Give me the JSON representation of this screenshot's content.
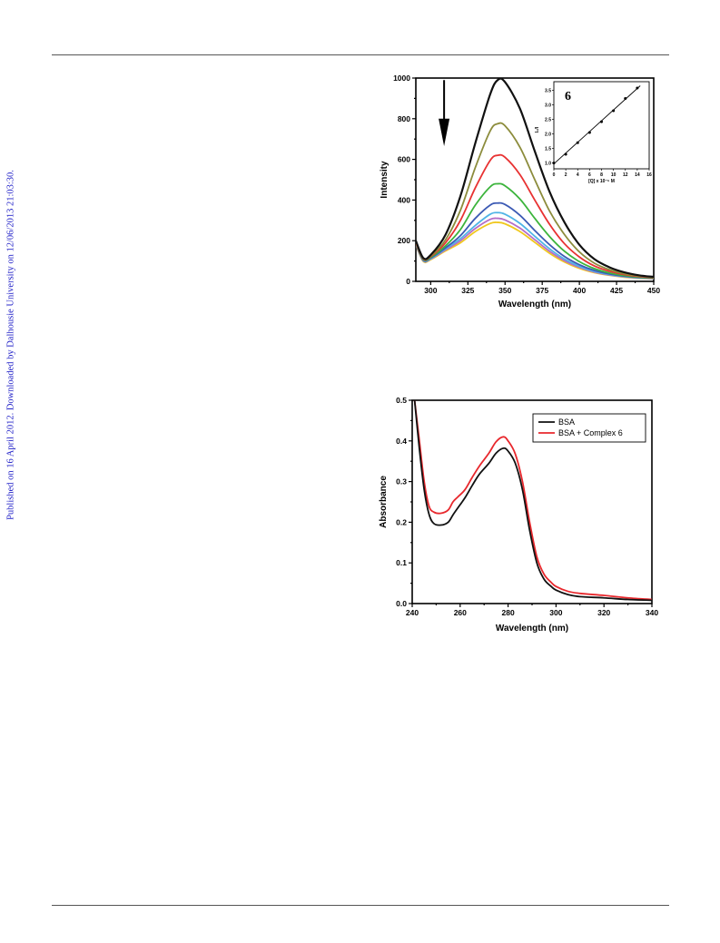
{
  "side_note": "Published on 16 April 2012. Downloaded by Dalhousie University on 12/06/2013 21:03:30.",
  "chart_data": [
    {
      "type": "line",
      "xlabel": "Wavelength (nm)",
      "ylabel": "Intensity",
      "xlim": [
        290,
        450
      ],
      "ylim": [
        0,
        1000
      ],
      "xticks": [
        300,
        325,
        350,
        375,
        400,
        425,
        450
      ],
      "yticks": [
        0,
        200,
        400,
        600,
        800,
        1000
      ],
      "annotation": "arrow pointing down (quenching)",
      "series": [
        {
          "color": "#111111",
          "values": [
            [
              290,
              200
            ],
            [
              295,
              115
            ],
            [
              300,
              130
            ],
            [
              310,
              230
            ],
            [
              320,
              420
            ],
            [
              330,
              680
            ],
            [
              340,
              920
            ],
            [
              345,
              990
            ],
            [
              350,
              980
            ],
            [
              360,
              850
            ],
            [
              370,
              640
            ],
            [
              380,
              440
            ],
            [
              390,
              290
            ],
            [
              400,
              180
            ],
            [
              410,
              110
            ],
            [
              420,
              70
            ],
            [
              430,
              45
            ],
            [
              440,
              30
            ],
            [
              450,
              22
            ]
          ]
        },
        {
          "color": "#8c8c3c",
          "values": [
            [
              290,
              195
            ],
            [
              295,
              112
            ],
            [
              300,
              125
            ],
            [
              310,
              205
            ],
            [
              320,
              350
            ],
            [
              330,
              560
            ],
            [
              340,
              740
            ],
            [
              345,
              775
            ],
            [
              350,
              765
            ],
            [
              360,
              660
            ],
            [
              370,
              500
            ],
            [
              380,
              345
            ],
            [
              390,
              230
            ],
            [
              400,
              145
            ],
            [
              410,
              90
            ],
            [
              420,
              58
            ],
            [
              430,
              38
            ],
            [
              440,
              27
            ],
            [
              450,
              20
            ]
          ]
        },
        {
          "color": "#e83232",
          "values": [
            [
              290,
              190
            ],
            [
              295,
              110
            ],
            [
              300,
              122
            ],
            [
              310,
              190
            ],
            [
              320,
              300
            ],
            [
              330,
              460
            ],
            [
              340,
              595
            ],
            [
              345,
              620
            ],
            [
              350,
              610
            ],
            [
              360,
              525
            ],
            [
              370,
              400
            ],
            [
              380,
              280
            ],
            [
              390,
              185
            ],
            [
              400,
              120
            ],
            [
              410,
              76
            ],
            [
              420,
              50
            ],
            [
              430,
              34
            ],
            [
              440,
              24
            ],
            [
              450,
              19
            ]
          ]
        },
        {
          "color": "#3cb43c",
          "values": [
            [
              290,
              188
            ],
            [
              295,
              108
            ],
            [
              300,
              118
            ],
            [
              310,
              175
            ],
            [
              320,
              255
            ],
            [
              330,
              375
            ],
            [
              340,
              465
            ],
            [
              345,
              480
            ],
            [
              350,
              470
            ],
            [
              360,
              405
            ],
            [
              370,
              310
            ],
            [
              380,
              220
            ],
            [
              390,
              148
            ],
            [
              400,
              97
            ],
            [
              410,
              63
            ],
            [
              420,
              42
            ],
            [
              430,
              29
            ],
            [
              440,
              21
            ],
            [
              450,
              17
            ]
          ]
        },
        {
          "color": "#3c5ab4",
          "values": [
            [
              290,
              185
            ],
            [
              295,
              105
            ],
            [
              300,
              115
            ],
            [
              310,
              165
            ],
            [
              320,
              225
            ],
            [
              330,
              310
            ],
            [
              340,
              375
            ],
            [
              345,
              385
            ],
            [
              350,
              378
            ],
            [
              360,
              325
            ],
            [
              370,
              250
            ],
            [
              380,
              180
            ],
            [
              390,
              122
            ],
            [
              400,
              82
            ],
            [
              410,
              54
            ],
            [
              420,
              37
            ],
            [
              430,
              26
            ],
            [
              440,
              19
            ],
            [
              450,
              16
            ]
          ]
        },
        {
          "color": "#50b4e6",
          "values": [
            [
              290,
              184
            ],
            [
              295,
              103
            ],
            [
              300,
              112
            ],
            [
              310,
              160
            ],
            [
              320,
              210
            ],
            [
              330,
              275
            ],
            [
              340,
              330
            ],
            [
              345,
              338
            ],
            [
              350,
              330
            ],
            [
              360,
              285
            ],
            [
              370,
              222
            ],
            [
              380,
              160
            ],
            [
              390,
              110
            ],
            [
              400,
              74
            ],
            [
              410,
              49
            ],
            [
              420,
              34
            ],
            [
              430,
              24
            ],
            [
              440,
              18
            ],
            [
              450,
              15
            ]
          ]
        },
        {
          "color": "#b46ec8",
          "values": [
            [
              290,
              182
            ],
            [
              295,
              101
            ],
            [
              300,
              110
            ],
            [
              310,
              155
            ],
            [
              320,
              200
            ],
            [
              330,
              260
            ],
            [
              340,
              305
            ],
            [
              345,
              310
            ],
            [
              350,
              302
            ],
            [
              360,
              262
            ],
            [
              370,
              205
            ],
            [
              380,
              148
            ],
            [
              390,
              102
            ],
            [
              400,
              69
            ],
            [
              410,
              46
            ],
            [
              420,
              32
            ],
            [
              430,
              23
            ],
            [
              440,
              17
            ],
            [
              450,
              14
            ]
          ]
        },
        {
          "color": "#f0c81e",
          "values": [
            [
              290,
              180
            ],
            [
              295,
              98
            ],
            [
              300,
              107
            ],
            [
              310,
              150
            ],
            [
              320,
              190
            ],
            [
              330,
              245
            ],
            [
              340,
              285
            ],
            [
              345,
              290
            ],
            [
              350,
              283
            ],
            [
              360,
              245
            ],
            [
              370,
              192
            ],
            [
              380,
              138
            ],
            [
              390,
              95
            ],
            [
              400,
              64
            ],
            [
              410,
              43
            ],
            [
              420,
              30
            ],
            [
              430,
              21
            ],
            [
              440,
              16
            ],
            [
              450,
              13
            ]
          ]
        }
      ],
      "inset": {
        "type": "scatter",
        "label": "6",
        "xlabel": "[Q] x 10⁻⁶ M",
        "ylabel": "I₀/I",
        "xlim": [
          0,
          16
        ],
        "ylim": [
          0.8,
          3.8
        ],
        "xticks": [
          0,
          2,
          4,
          6,
          8,
          10,
          12,
          14,
          16
        ],
        "yticks": [
          1.0,
          1.5,
          2.0,
          2.5,
          3.0,
          3.5
        ],
        "ytick_labels": [
          "1.0",
          "1.5",
          "2.0",
          "2.5",
          "3.0",
          "3.5"
        ],
        "x": [
          0,
          2,
          4,
          6,
          8,
          10,
          12,
          14
        ],
        "y": [
          1.0,
          1.3,
          1.7,
          2.05,
          2.42,
          2.8,
          3.22,
          3.58
        ],
        "fit": [
          [
            0,
            0.97
          ],
          [
            14.5,
            3.66
          ]
        ]
      }
    },
    {
      "type": "line",
      "xlabel": "Wavelength (nm)",
      "ylabel": "Absorbance",
      "xlim": [
        240,
        340
      ],
      "ylim": [
        0.0,
        0.5
      ],
      "xticks": [
        240,
        260,
        280,
        300,
        320,
        340
      ],
      "yticks": [
        0.0,
        0.1,
        0.2,
        0.3,
        0.4,
        0.5
      ],
      "ytick_labels": [
        "0.0",
        "0.1",
        "0.2",
        "0.3",
        "0.4",
        "0.5"
      ],
      "legend_position": "top-right",
      "series": [
        {
          "name": "BSA",
          "color": "#111111",
          "values": [
            [
              241,
              0.5
            ],
            [
              243,
              0.38
            ],
            [
              245,
              0.28
            ],
            [
              247,
              0.22
            ],
            [
              249,
              0.197
            ],
            [
              252,
              0.193
            ],
            [
              255,
              0.2
            ],
            [
              257,
              0.218
            ],
            [
              259,
              0.235
            ],
            [
              262,
              0.26
            ],
            [
              265,
              0.29
            ],
            [
              268,
              0.318
            ],
            [
              272,
              0.345
            ],
            [
              275,
              0.37
            ],
            [
              278,
              0.382
            ],
            [
              280,
              0.375
            ],
            [
              283,
              0.345
            ],
            [
              286,
              0.28
            ],
            [
              289,
              0.18
            ],
            [
              292,
              0.1
            ],
            [
              295,
              0.06
            ],
            [
              298,
              0.042
            ],
            [
              300,
              0.033
            ],
            [
              305,
              0.022
            ],
            [
              310,
              0.017
            ],
            [
              320,
              0.014
            ],
            [
              330,
              0.01
            ],
            [
              340,
              0.008
            ]
          ]
        },
        {
          "name": "BSA + Complex 6",
          "color": "#e8282d",
          "values": [
            [
              241,
              0.5
            ],
            [
              243,
              0.4
            ],
            [
              245,
              0.3
            ],
            [
              247,
              0.24
            ],
            [
              249,
              0.225
            ],
            [
              252,
              0.222
            ],
            [
              255,
              0.23
            ],
            [
              257,
              0.25
            ],
            [
              259,
              0.262
            ],
            [
              262,
              0.28
            ],
            [
              265,
              0.31
            ],
            [
              268,
              0.338
            ],
            [
              272,
              0.37
            ],
            [
              275,
              0.398
            ],
            [
              278,
              0.41
            ],
            [
              280,
              0.4
            ],
            [
              283,
              0.368
            ],
            [
              286,
              0.3
            ],
            [
              289,
              0.2
            ],
            [
              292,
              0.115
            ],
            [
              295,
              0.072
            ],
            [
              298,
              0.052
            ],
            [
              300,
              0.042
            ],
            [
              305,
              0.03
            ],
            [
              310,
              0.025
            ],
            [
              320,
              0.02
            ],
            [
              330,
              0.014
            ],
            [
              340,
              0.01
            ]
          ]
        }
      ]
    }
  ]
}
